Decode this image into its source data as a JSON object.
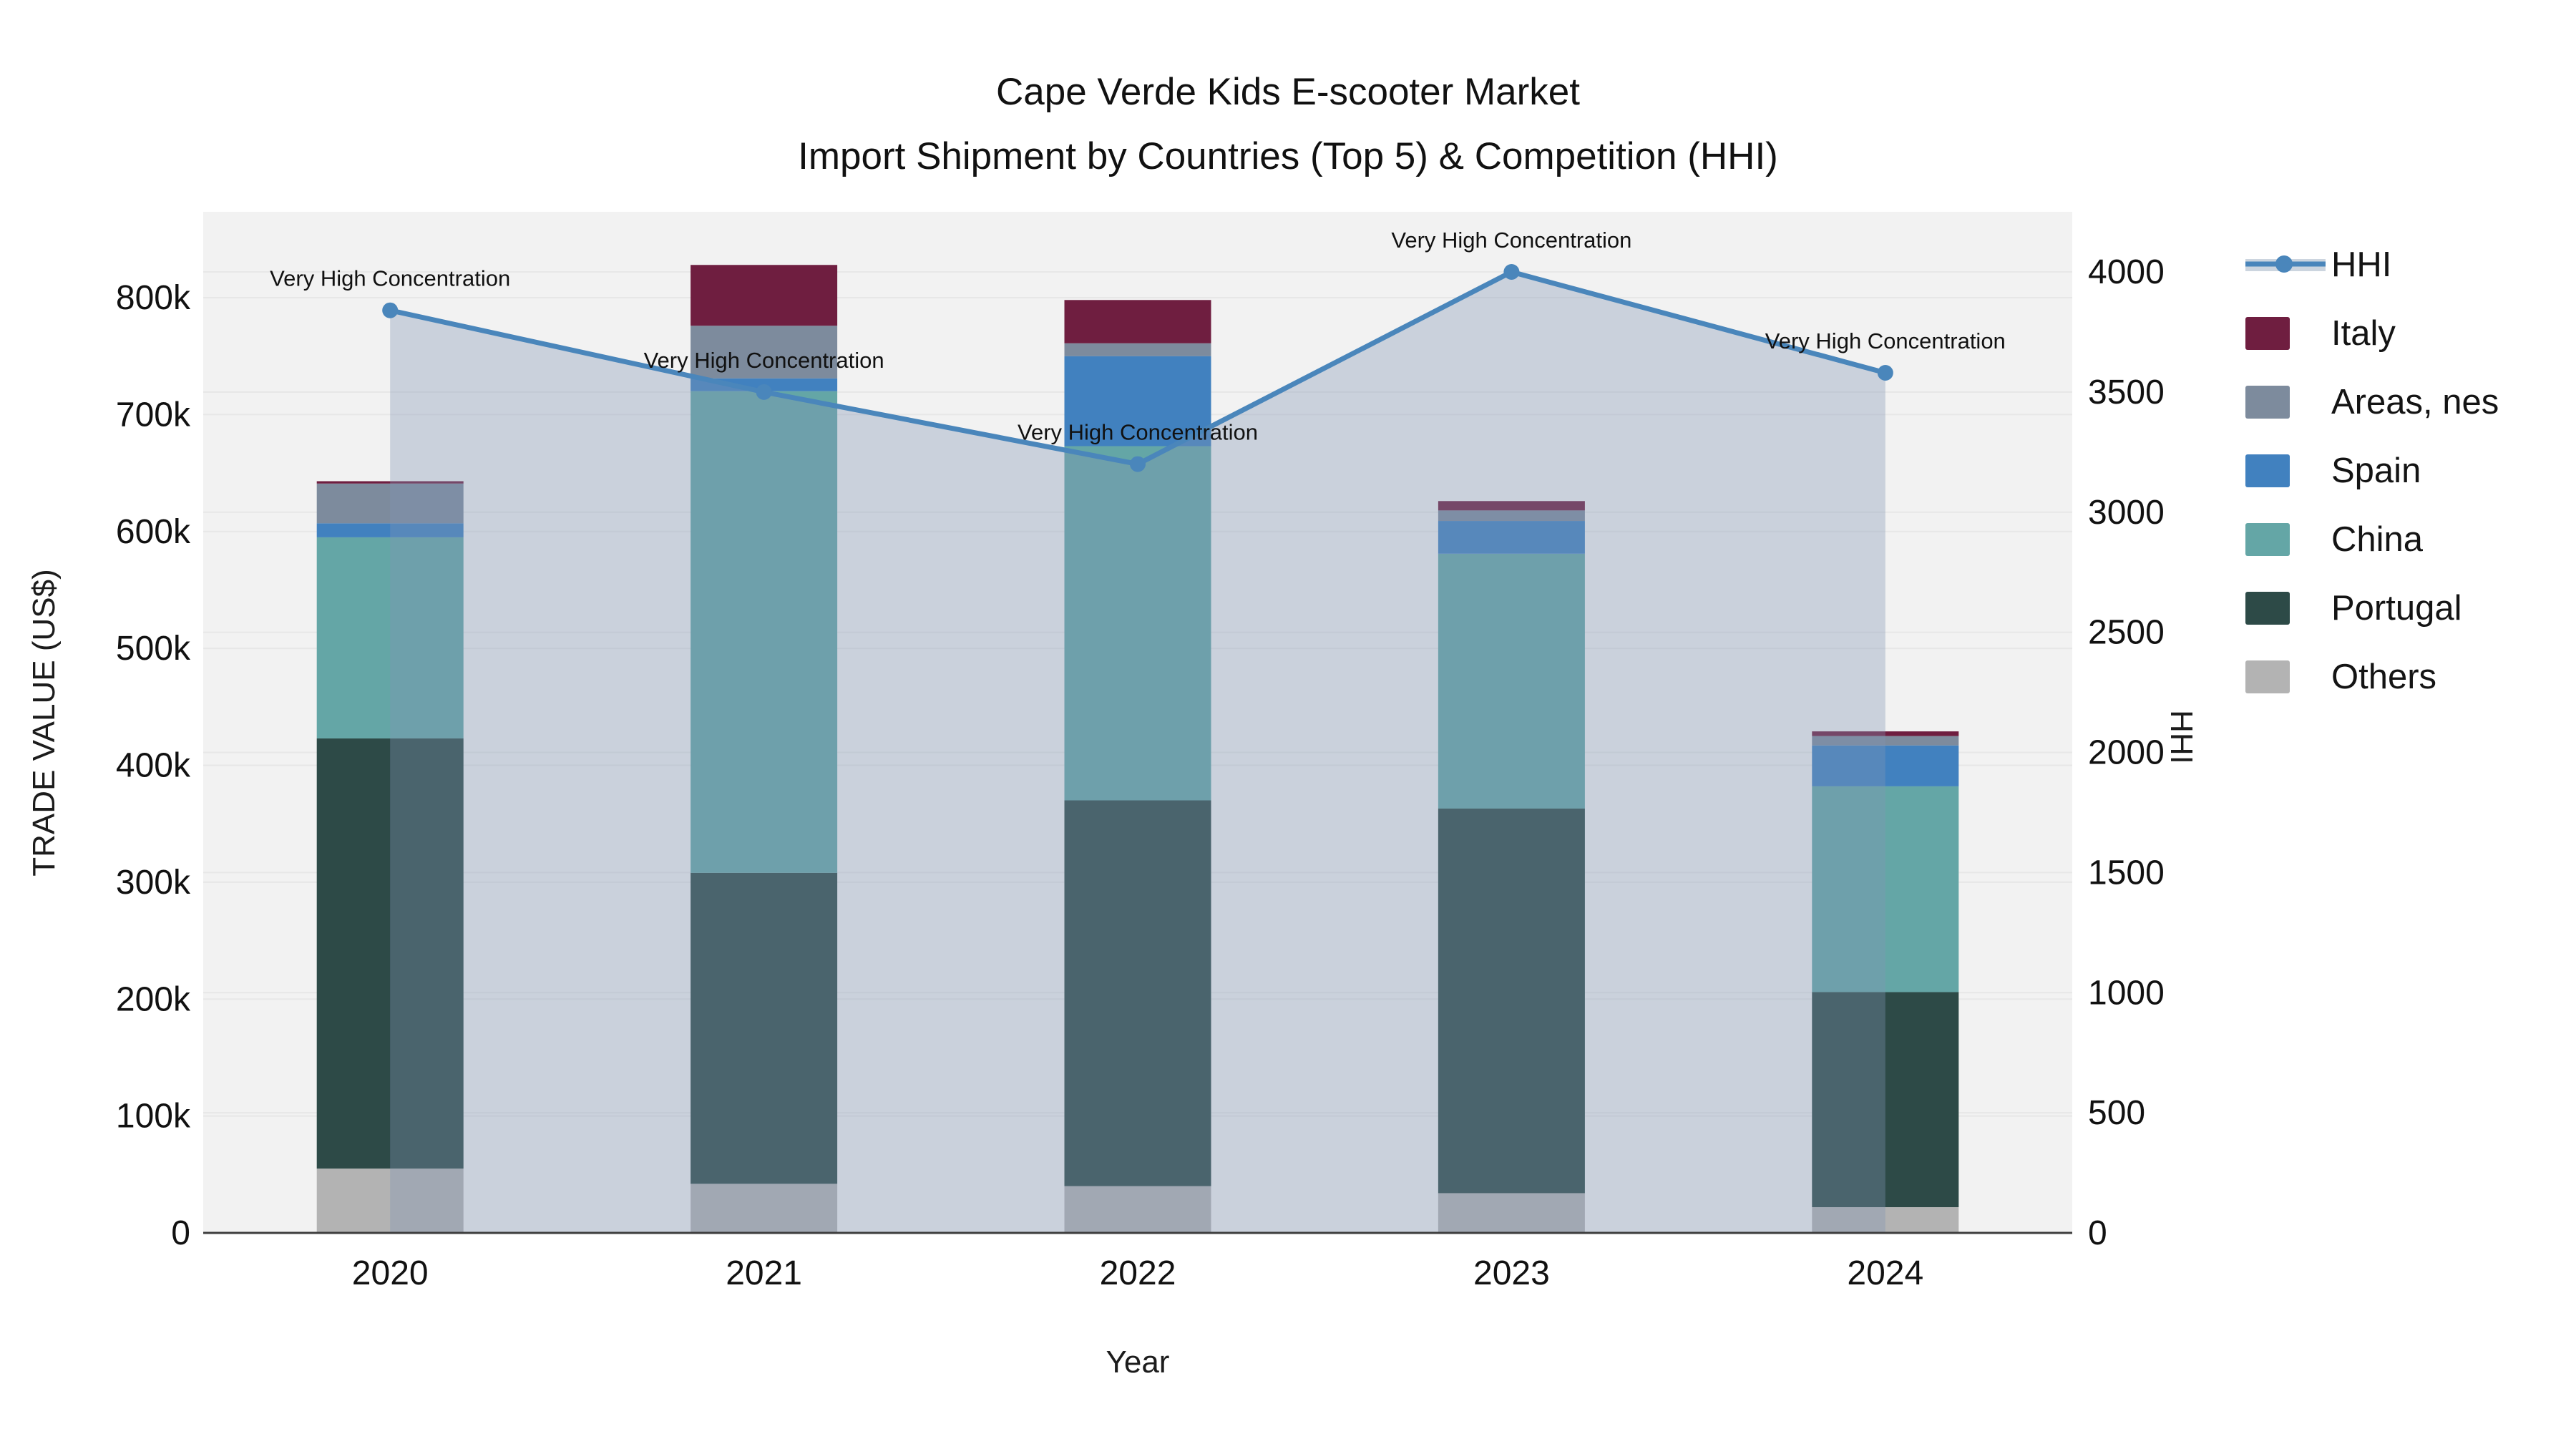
{
  "title": {
    "line1": "Cape Verde Kids E-scooter Market",
    "line2": "Import Shipment by Countries (Top 5) & Competition (HHI)"
  },
  "axes": {
    "x": {
      "title": "Year",
      "ticks": [
        "2020",
        "2021",
        "2022",
        "2023",
        "2024"
      ]
    },
    "y_left": {
      "title": "TRADE VALUE (US$)",
      "ticks": [
        "0",
        "100k",
        "200k",
        "300k",
        "400k",
        "500k",
        "600k",
        "700k",
        "800k"
      ],
      "max_k": 800
    },
    "y_right": {
      "title": "HHI",
      "ticks": [
        "0",
        "500",
        "1000",
        "1500",
        "2000",
        "2500",
        "3000",
        "3500",
        "4000"
      ],
      "max": 4000
    }
  },
  "legend": {
    "items": [
      {
        "label": "HHI",
        "type": "line",
        "color": "#4a86bb",
        "band": "#ccd5df"
      },
      {
        "label": "Italy",
        "type": "swatch",
        "color": "#6f1e40"
      },
      {
        "label": "Areas, nes",
        "type": "swatch",
        "color": "#7d8b9d"
      },
      {
        "label": "Spain",
        "type": "swatch",
        "color": "#4181bf"
      },
      {
        "label": "China",
        "type": "swatch",
        "color": "#64a6a6"
      },
      {
        "label": "Portugal",
        "type": "swatch",
        "color": "#2d4a47"
      },
      {
        "label": "Others",
        "type": "swatch",
        "color": "#b3b3b3"
      }
    ]
  },
  "annotation_label": "Very High Concentration",
  "colors": {
    "plot_bg": "#f2f2f2",
    "grid": "#e7e7e7",
    "axis_line": "#3d3d3d",
    "hhi_line": "#4a86bb",
    "hhi_area_fill": "rgba(130,150,180,0.35)"
  },
  "chart_data": {
    "type": "bar+line",
    "title": "Cape Verde Kids E-scooter Market — Import Shipment by Countries (Top 5) & Competition (HHI)",
    "xlabel": "Year",
    "ylabel_left": "TRADE VALUE (US$)",
    "ylabel_right": "HHI",
    "categories": [
      "2020",
      "2021",
      "2022",
      "2023",
      "2024"
    ],
    "bar_mode": "stacked",
    "stack_order_bottom_to_top": [
      "Others",
      "Portugal",
      "China",
      "Spain",
      "Areas, nes",
      "Italy"
    ],
    "series": [
      {
        "name": "Others",
        "color": "#b3b3b3",
        "values_k_usd": [
          55,
          42,
          40,
          34,
          22
        ]
      },
      {
        "name": "Portugal",
        "color": "#2d4a47",
        "values_k_usd": [
          368,
          266,
          330,
          329,
          184
        ]
      },
      {
        "name": "China",
        "color": "#64a6a6",
        "values_k_usd": [
          172,
          412,
          303,
          218,
          176
        ]
      },
      {
        "name": "Spain",
        "color": "#4181bf",
        "values_k_usd": [
          12,
          11,
          77,
          28,
          35
        ]
      },
      {
        "name": "Areas, nes",
        "color": "#7d8b9d",
        "values_k_usd": [
          34,
          45,
          11,
          9,
          8
        ]
      },
      {
        "name": "Italy",
        "color": "#6f1e40",
        "values_k_usd": [
          2,
          52,
          37,
          8,
          4
        ]
      }
    ],
    "totals_k_usd": [
      643,
      828,
      798,
      626,
      429
    ],
    "line_series": {
      "name": "HHI",
      "color": "#4a86bb",
      "area_fill": "rgba(130,150,180,0.35)",
      "values": [
        3840,
        3500,
        3200,
        4000,
        3580
      ],
      "point_annotations": [
        "Very High Concentration",
        "Very High Concentration",
        "Very High Concentration",
        "Very High Concentration",
        "Very High Concentration"
      ]
    },
    "ylim_left_k": [
      0,
      800
    ],
    "ylim_right": [
      0,
      4000
    ],
    "grid": true,
    "legend_position": "right"
  }
}
